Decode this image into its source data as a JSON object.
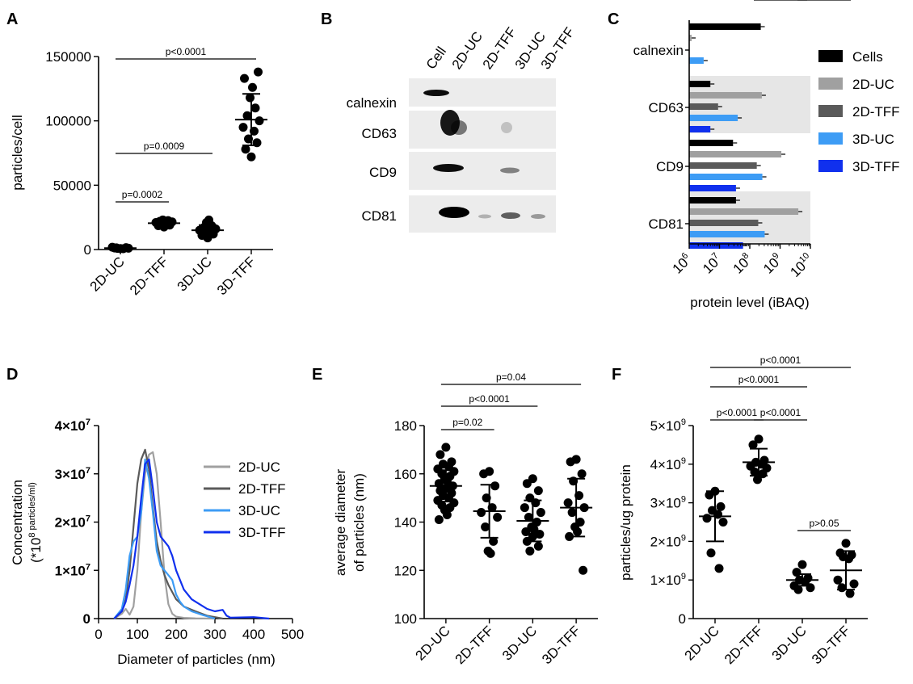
{
  "panels": {
    "A": {
      "letter": "A"
    },
    "B": {
      "letter": "B"
    },
    "C": {
      "letter": "C"
    },
    "D": {
      "letter": "D"
    },
    "E": {
      "letter": "E"
    },
    "F": {
      "letter": "F"
    }
  },
  "colors": {
    "black": "#000000",
    "gray_light": "#a0a0a0",
    "gray_dark": "#5a5a5a",
    "blue_light": "#3d9cf5",
    "blue_dark": "#1030ee",
    "shade": "#e6e6e6"
  },
  "western_blot": {
    "lanes": [
      "Cell",
      "2D-UC",
      "2D-TFF",
      "3D-UC",
      "3D-TFF"
    ],
    "rows": [
      "calnexin",
      "CD63",
      "CD9",
      "CD81"
    ]
  },
  "chart_data": [
    {
      "id": "A",
      "type": "scatter",
      "ylabel": "particles/cell",
      "categories": [
        "2D-UC",
        "2D-TFF",
        "3D-UC",
        "3D-TFF"
      ],
      "ylim": [
        0,
        150000
      ],
      "yticks": [
        "0",
        "50000",
        "100000",
        "150000"
      ],
      "points": [
        [
          800,
          1200,
          1500,
          900,
          600,
          1800,
          1000,
          1300
        ],
        [
          17500,
          18500,
          19000,
          20000,
          20500,
          21000,
          21500,
          22000,
          22500,
          23000,
          19500,
          20800
        ],
        [
          9000,
          11000,
          12000,
          13500,
          14000,
          15000,
          16000,
          17000,
          18500,
          21000,
          23000
        ],
        [
          72000,
          78000,
          83000,
          86000,
          92000,
          95000,
          100000,
          104000,
          110000,
          118000,
          126000,
          133000,
          138000
        ]
      ],
      "means": [
        1100,
        20500,
        15000,
        101000
      ],
      "sd": [
        500,
        1800,
        4000,
        20000
      ],
      "comparisons": [
        {
          "from": 0,
          "to": 3,
          "label": "p<0.0001"
        },
        {
          "from": 0,
          "to": 2,
          "label": "p=0.0009"
        },
        {
          "from": 0,
          "to": 1,
          "label": "p=0.0002"
        }
      ]
    },
    {
      "id": "C",
      "type": "bar",
      "xlabel": "protein level (iBAQ)",
      "xscale": "log",
      "xlim": [
        1000000,
        10000000000
      ],
      "xticks": [
        "10^6",
        "10^7",
        "10^8",
        "10^9",
        "10^10"
      ],
      "groups": [
        "calnexin",
        "CD63",
        "CD9",
        "CD81"
      ],
      "series": [
        {
          "name": "Cells",
          "values": [
            230000000,
            5000000,
            28000000,
            35000000
          ]
        },
        {
          "name": "2D-UC",
          "values": [
            1200000,
            250000000,
            1100000000,
            4000000000
          ]
        },
        {
          "name": "2D-TFF",
          "values": [
            null,
            9000000,
            170000000,
            190000000
          ]
        },
        {
          "name": "3D-UC",
          "values": [
            3000000,
            40000000,
            260000000,
            310000000
          ]
        },
        {
          "name": "3D-TFF",
          "values": [
            null,
            5000000,
            35000000,
            60000000
          ]
        }
      ],
      "legend_position": "right"
    },
    {
      "id": "D",
      "type": "line",
      "xlabel": "Diameter of particles (nm)",
      "ylabel_line1": "Concentration",
      "ylabel_line2": "(*10^8 particles/ml)",
      "xlim": [
        0,
        500
      ],
      "xticks": [
        "0",
        "100",
        "200",
        "300",
        "400",
        "500"
      ],
      "ylim": [
        0,
        40000000
      ],
      "yticks": [
        "0",
        "1×10^7",
        "2×10^7",
        "3×10^7",
        "4×10^7"
      ],
      "series": [
        {
          "name": "2D-UC",
          "x": [
            40,
            60,
            70,
            80,
            90,
            100,
            110,
            120,
            130,
            140,
            150,
            160,
            170,
            180,
            190,
            200,
            220,
            250,
            300
          ],
          "y": [
            0,
            1000000,
            2000000,
            800000,
            2500000,
            10000000,
            22000000,
            30000000,
            34000000,
            34500000,
            30000000,
            20000000,
            9000000,
            3000000,
            1000000,
            400000,
            150000,
            50000,
            0
          ]
        },
        {
          "name": "2D-TFF",
          "x": [
            40,
            60,
            70,
            80,
            90,
            100,
            110,
            120,
            130,
            140,
            150,
            160,
            170,
            180,
            190,
            200,
            220,
            250,
            280,
            320
          ],
          "y": [
            0,
            1500000,
            4000000,
            10000000,
            19000000,
            28000000,
            33000000,
            35000000,
            31000000,
            23000000,
            16000000,
            12000000,
            9000000,
            7000000,
            5500000,
            4000000,
            2500000,
            1500000,
            600000,
            0
          ]
        },
        {
          "name": "3D-UC",
          "x": [
            40,
            60,
            70,
            80,
            90,
            100,
            110,
            120,
            130,
            140,
            150,
            160,
            170,
            180,
            190,
            200,
            210,
            220,
            240,
            270,
            300
          ],
          "y": [
            0,
            2000000,
            6000000,
            13000000,
            16000000,
            17000000,
            22000000,
            33000000,
            29000000,
            22000000,
            14000000,
            11000000,
            10000000,
            9000000,
            8000000,
            5000000,
            3500000,
            2500000,
            1500000,
            700000,
            0
          ]
        },
        {
          "name": "3D-TFF",
          "x": [
            40,
            60,
            70,
            80,
            90,
            100,
            110,
            120,
            130,
            140,
            150,
            160,
            170,
            180,
            190,
            200,
            220,
            240,
            260,
            280,
            300,
            320,
            330,
            340,
            400,
            440
          ],
          "y": [
            0,
            1500000,
            3500000,
            7000000,
            11000000,
            17000000,
            25000000,
            32000000,
            33000000,
            27000000,
            20000000,
            17000000,
            16000000,
            15000000,
            13000000,
            10000000,
            6000000,
            4000000,
            3000000,
            2000000,
            1500000,
            1800000,
            600000,
            200000,
            300000,
            0
          ]
        }
      ],
      "legend_position": "top-right"
    },
    {
      "id": "E",
      "type": "scatter",
      "ylabel_line1": "average diameter",
      "ylabel_line2": "of particles (nm)",
      "categories": [
        "2D-UC",
        "2D-TFF",
        "3D-UC",
        "3D-TFF"
      ],
      "ylim": [
        100,
        180
      ],
      "yticks": [
        "100",
        "120",
        "140",
        "160",
        "180"
      ],
      "points": [
        [
          171,
          168,
          165,
          164,
          163,
          162,
          161,
          160,
          159,
          158,
          157,
          156,
          155,
          154,
          153,
          152,
          151,
          150,
          149,
          148,
          147,
          146,
          145,
          143,
          141
        ],
        [
          161,
          160,
          155,
          150,
          146,
          144,
          142,
          138,
          132,
          128,
          127
        ],
        [
          158,
          156,
          153,
          150,
          148,
          146,
          144,
          142,
          140,
          138,
          137,
          136,
          135,
          134,
          132,
          130,
          128
        ],
        [
          166,
          165,
          160,
          157,
          151,
          148,
          146,
          144,
          140,
          138,
          136,
          134,
          120
        ]
      ],
      "means": [
        155,
        144.5,
        140.5,
        146
      ],
      "sd": [
        6.5,
        11,
        8.5,
        12
      ],
      "comparisons": [
        {
          "from": 0,
          "to": 3,
          "label": "p=0.04"
        },
        {
          "from": 0,
          "to": 2,
          "label": "p<0.0001"
        },
        {
          "from": 0,
          "to": 1,
          "label": "p=0.02"
        }
      ]
    },
    {
      "id": "F",
      "type": "scatter",
      "ylabel": "particles/ug protein",
      "categories": [
        "2D-UC",
        "2D-TFF",
        "3D-UC",
        "3D-TFF"
      ],
      "ylim": [
        0,
        5000000000
      ],
      "yticks": [
        "0",
        "1×10^9",
        "2×10^9",
        "3×10^9",
        "4×10^9",
        "5×10^9"
      ],
      "points": [
        [
          3300000000,
          3200000000,
          2900000000,
          2800000000,
          2700000000,
          2600000000,
          2500000000,
          1700000000,
          1300000000
        ],
        [
          4650000000,
          4500000000,
          4100000000,
          4050000000,
          4000000000,
          3950000000,
          3900000000,
          3800000000,
          3750000000,
          3600000000
        ],
        [
          1400000000,
          1200000000,
          1050000000,
          1000000000,
          950000000,
          850000000,
          800000000,
          750000000
        ],
        [
          1950000000,
          1700000000,
          1650000000,
          1600000000,
          1550000000,
          1000000000,
          900000000,
          800000000,
          650000000
        ]
      ],
      "means": [
        2650000000,
        4050000000,
        1000000000,
        1250000000
      ],
      "sd": [
        650000000,
        350000000,
        150000000,
        500000000
      ],
      "comparisons": [
        {
          "from": 0,
          "to": 3,
          "label": "p<0.0001"
        },
        {
          "from": 0,
          "to": 2,
          "label": "p<0.0001"
        },
        {
          "from": 0,
          "to": 1,
          "label": "p<0.0001"
        },
        {
          "from": 1,
          "to": 2,
          "label": "p<0.0001"
        },
        {
          "from": 2,
          "to": 3,
          "label": "p>0.05"
        }
      ]
    }
  ]
}
